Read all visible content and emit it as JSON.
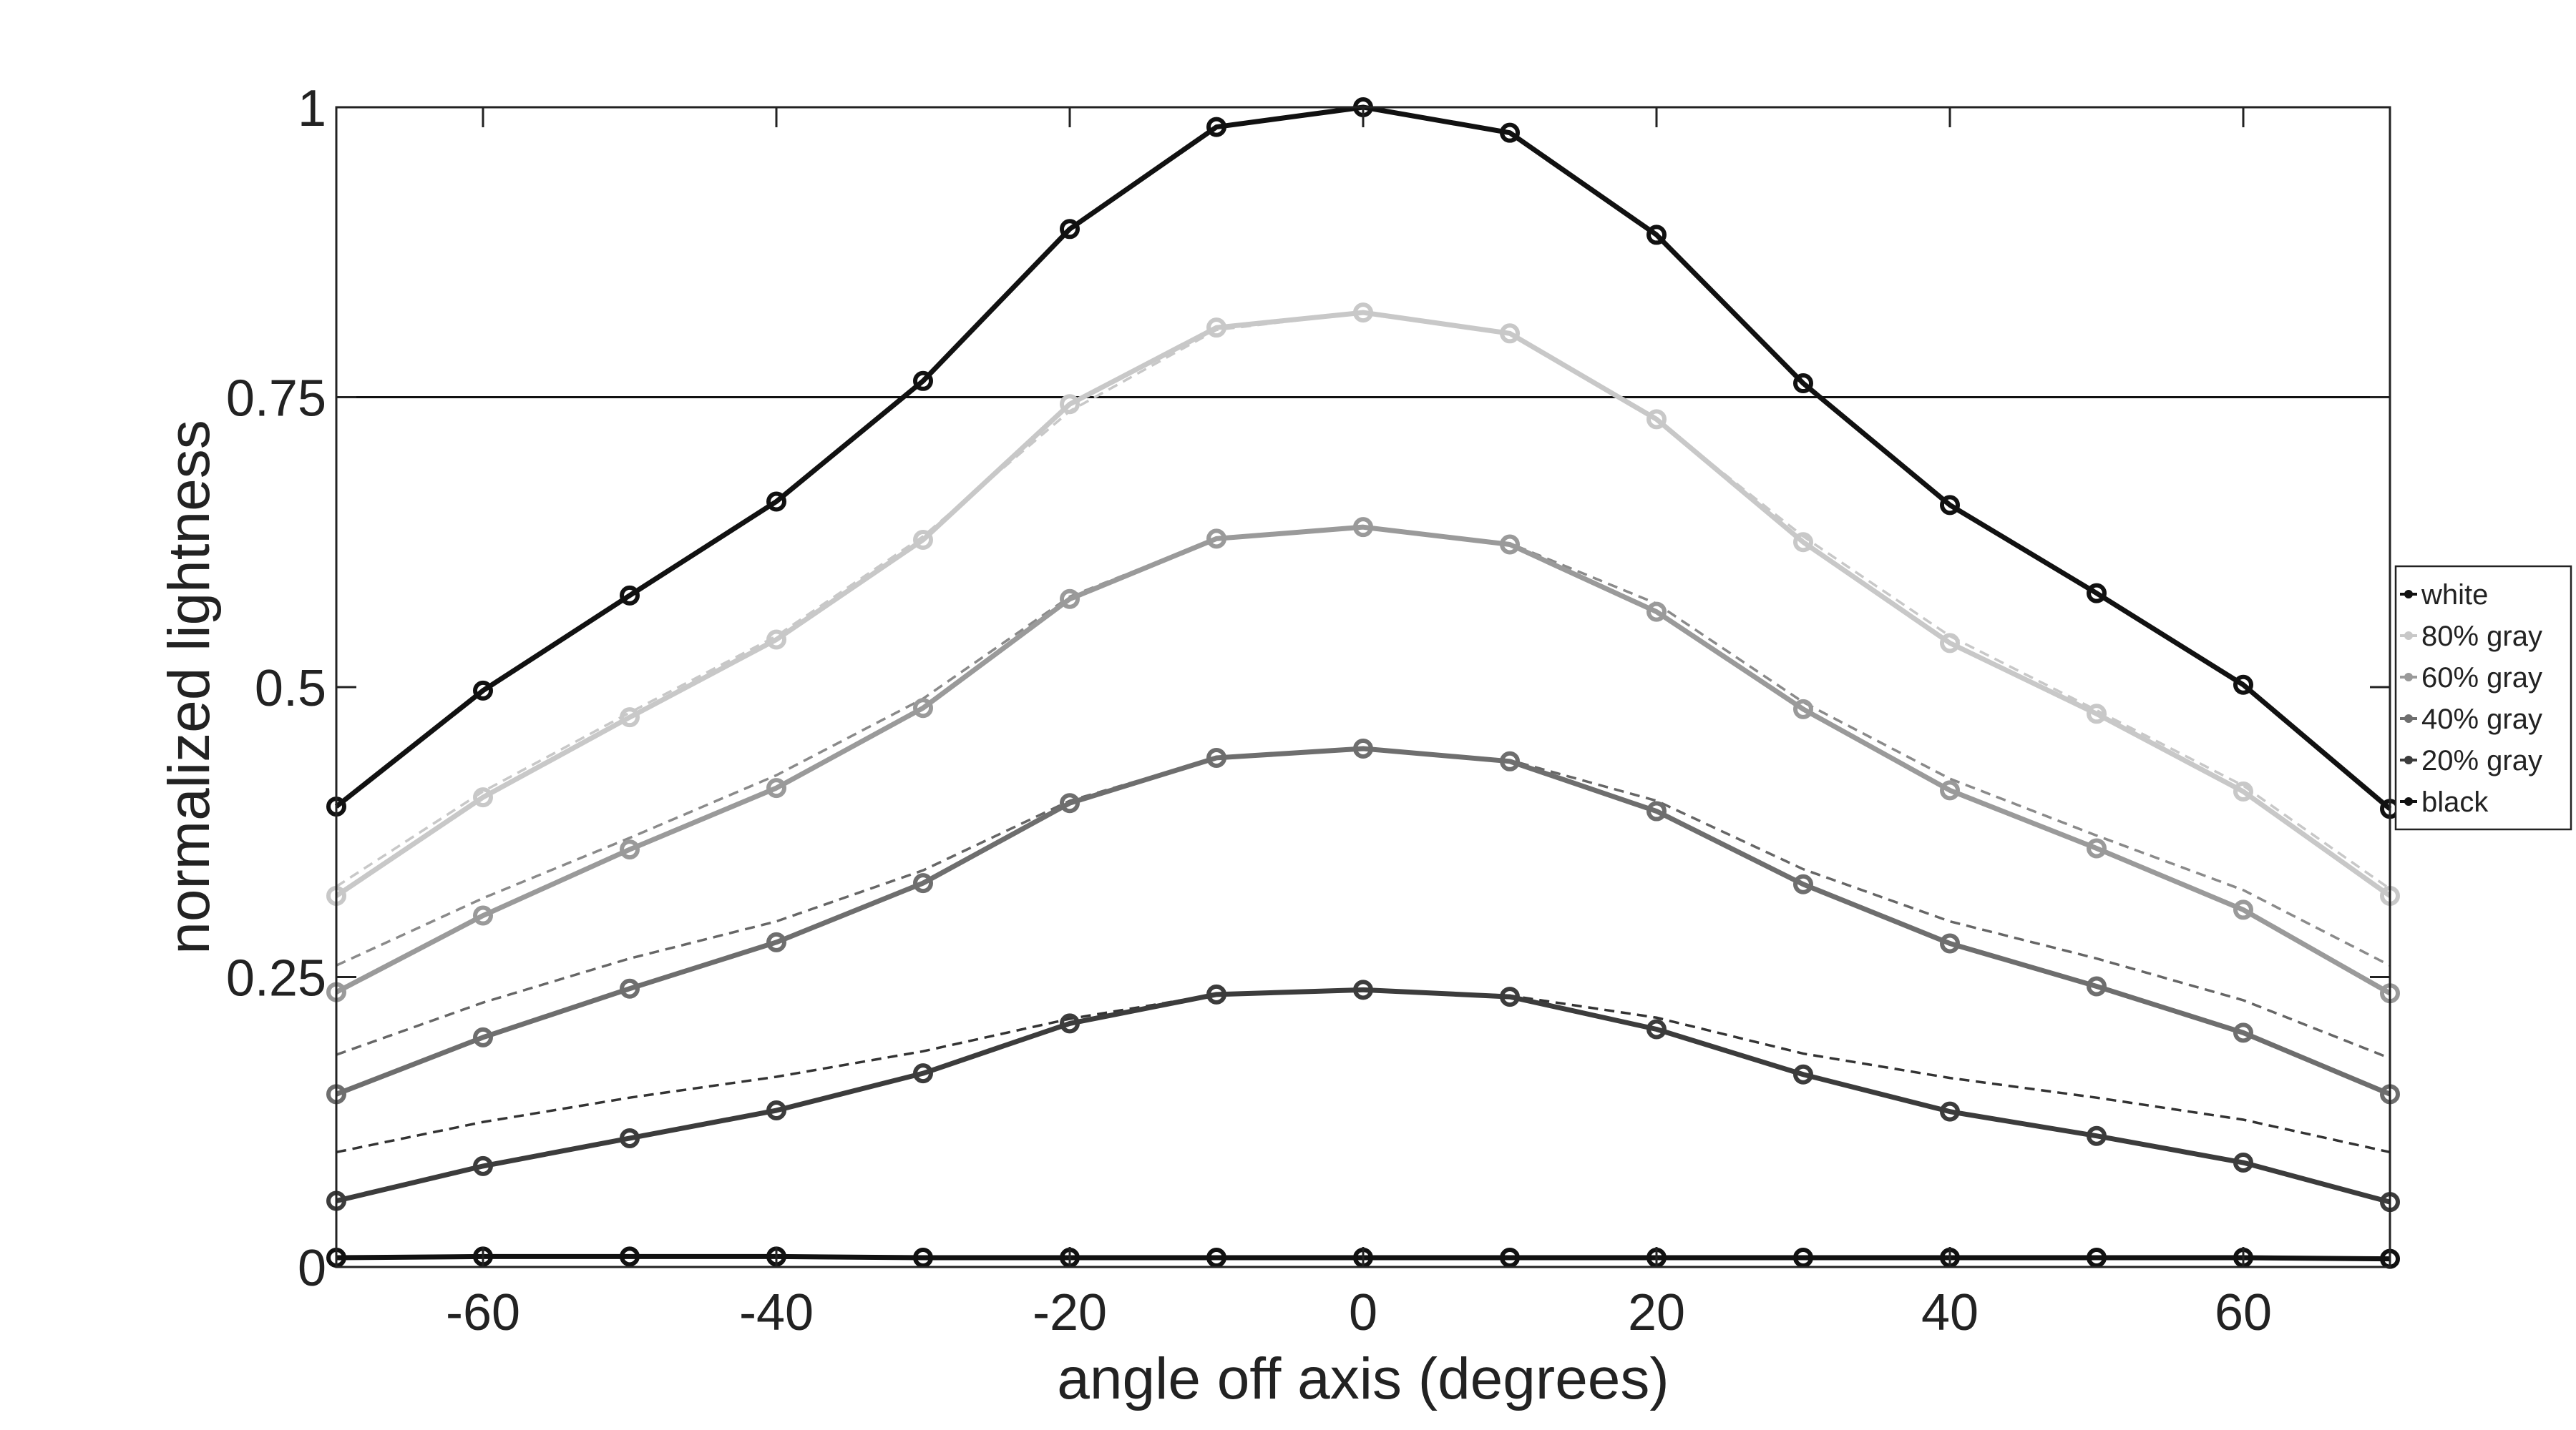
{
  "chart_data": {
    "type": "line",
    "xlabel": "angle off axis (degrees)",
    "ylabel": "normalized lightness",
    "xlim": [
      -70,
      70
    ],
    "ylim": [
      0,
      1
    ],
    "xticks": [
      -60,
      -40,
      -20,
      0,
      20,
      40,
      60
    ],
    "xtick_labels": [
      "-60",
      "-40",
      "-20",
      "0",
      "20",
      "40",
      "60"
    ],
    "yticks": [
      0,
      0.25,
      0.5,
      0.75,
      1
    ],
    "ytick_labels": [
      "0",
      "0.25",
      "0.5",
      "0.75",
      "1"
    ],
    "grid": false,
    "legend_position": "right, outside plot area",
    "reference_line": {
      "y": 0.75,
      "style": "solid horizontal"
    },
    "x": [
      -70,
      -60,
      -50,
      -40,
      -30,
      -20,
      -10,
      0,
      10,
      20,
      30,
      40,
      50,
      60,
      70
    ],
    "series": [
      {
        "name": "white",
        "color": "#111111",
        "values": [
          0.397,
          0.497,
          0.579,
          0.66,
          0.764,
          0.895,
          0.983,
          1.0,
          0.978,
          0.89,
          0.762,
          0.657,
          0.581,
          0.502,
          0.395
        ]
      },
      {
        "name": "80% gray",
        "color": "#c8c8c8",
        "values": [
          0.32,
          0.405,
          0.474,
          0.541,
          0.627,
          0.744,
          0.81,
          0.823,
          0.805,
          0.731,
          0.625,
          0.538,
          0.477,
          0.41,
          0.32
        ]
      },
      {
        "name": "60% gray",
        "color": "#9a9a9a",
        "values": [
          0.237,
          0.303,
          0.36,
          0.413,
          0.482,
          0.576,
          0.628,
          0.638,
          0.623,
          0.565,
          0.481,
          0.411,
          0.361,
          0.308,
          0.236
        ]
      },
      {
        "name": "40% gray",
        "color": "#6e6e6e",
        "values": [
          0.149,
          0.198,
          0.24,
          0.28,
          0.331,
          0.4,
          0.439,
          0.447,
          0.436,
          0.393,
          0.33,
          0.279,
          0.242,
          0.202,
          0.149
        ]
      },
      {
        "name": "20% gray",
        "color": "#3c3c3c",
        "values": [
          0.057,
          0.087,
          0.111,
          0.135,
          0.167,
          0.21,
          0.235,
          0.239,
          0.233,
          0.205,
          0.166,
          0.134,
          0.113,
          0.09,
          0.056
        ]
      },
      {
        "name": "black",
        "color": "#111111",
        "values": [
          0.008,
          0.009,
          0.009,
          0.009,
          0.008,
          0.008,
          0.008,
          0.008,
          0.008,
          0.008,
          0.008,
          0.008,
          0.008,
          0.008,
          0.007
        ]
      }
    ],
    "reference_curves": [
      {
        "color": "#c8c8c8",
        "values": [
          0.328,
          0.41,
          0.478,
          0.544,
          0.63,
          0.738,
          0.808,
          0.823,
          0.804,
          0.73,
          0.63,
          0.544,
          0.48,
          0.415,
          0.326
        ]
      },
      {
        "color": "#8a8a8a",
        "values": [
          0.26,
          0.318,
          0.37,
          0.424,
          0.49,
          0.578,
          0.628,
          0.638,
          0.624,
          0.572,
          0.487,
          0.421,
          0.372,
          0.325,
          0.26
        ]
      },
      {
        "color": "#666666",
        "values": [
          0.183,
          0.228,
          0.266,
          0.298,
          0.342,
          0.402,
          0.439,
          0.447,
          0.437,
          0.402,
          0.343,
          0.298,
          0.266,
          0.23,
          0.18
        ]
      },
      {
        "color": "#333333",
        "values": [
          0.099,
          0.125,
          0.146,
          0.164,
          0.186,
          0.214,
          0.235,
          0.239,
          0.234,
          0.215,
          0.184,
          0.163,
          0.146,
          0.127,
          0.099
        ]
      }
    ]
  }
}
